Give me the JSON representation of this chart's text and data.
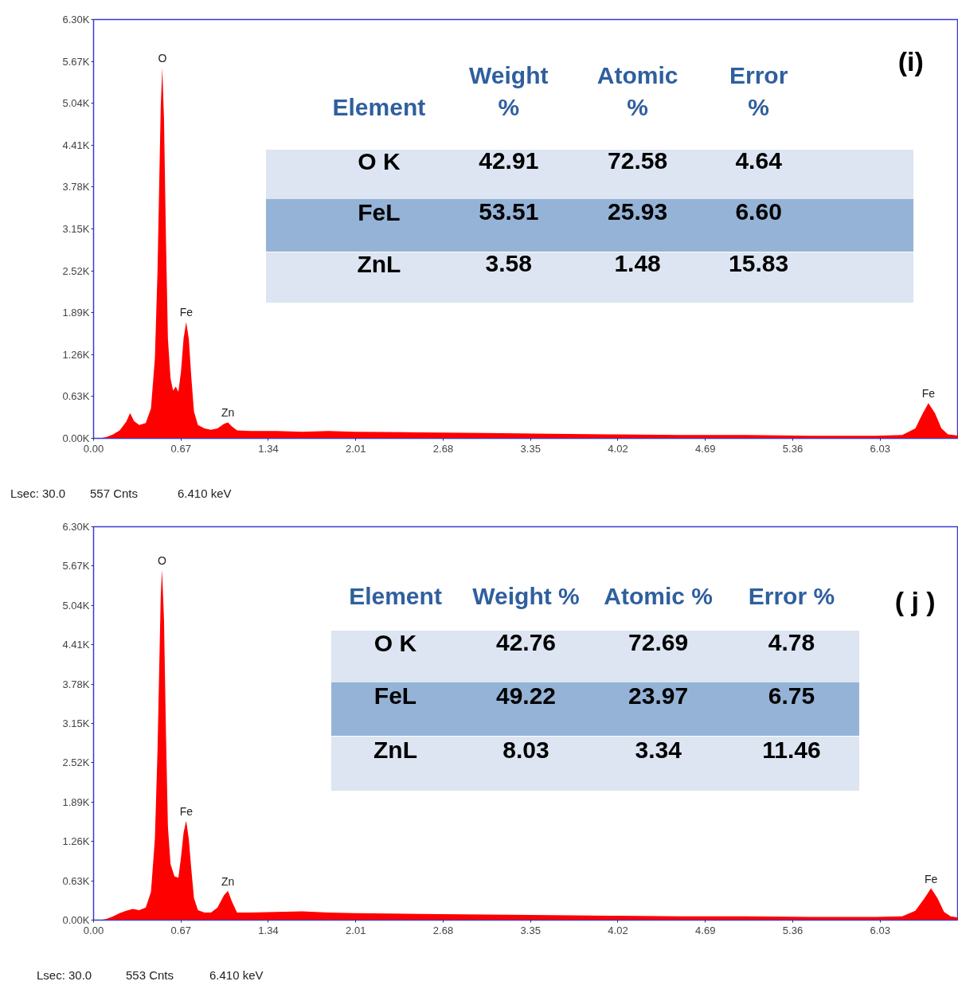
{
  "chart_data": [
    {
      "type": "area",
      "title": "(i)",
      "x": [
        0.05,
        0.1,
        0.15,
        0.2,
        0.25,
        0.28,
        0.31,
        0.35,
        0.4,
        0.44,
        0.47,
        0.49,
        0.505,
        0.515,
        0.527,
        0.54,
        0.555,
        0.57,
        0.59,
        0.61,
        0.63,
        0.65,
        0.67,
        0.69,
        0.71,
        0.73,
        0.75,
        0.77,
        0.8,
        0.85,
        0.9,
        0.95,
        1.0,
        1.03,
        1.06,
        1.1,
        1.2,
        1.4,
        1.6,
        1.8,
        2.0,
        2.5,
        3.0,
        3.5,
        4.0,
        4.5,
        5.0,
        5.5,
        6.0,
        6.2,
        6.3,
        6.35,
        6.4,
        6.45,
        6.5,
        6.55,
        6.63
      ],
      "series": [
        {
          "color": "#ff0000",
          "values": [
            0,
            20,
            60,
            120,
            250,
            380,
            260,
            200,
            230,
            450,
            1200,
            2500,
            4000,
            5000,
            5570,
            4800,
            3000,
            1500,
            900,
            720,
            780,
            700,
            1000,
            1500,
            1750,
            1500,
            900,
            400,
            200,
            150,
            130,
            150,
            220,
            240,
            180,
            120,
            110,
            110,
            100,
            110,
            100,
            90,
            80,
            70,
            60,
            50,
            50,
            40,
            40,
            50,
            150,
            350,
            530,
            380,
            150,
            60,
            40
          ]
        }
      ],
      "xlim": [
        0,
        6.63
      ],
      "ylim": [
        0,
        6300
      ],
      "xticks": [
        {
          "value": 0,
          "label": "0.00"
        },
        0.67,
        1.34,
        2.01,
        2.68,
        3.35,
        4.02,
        4.69,
        5.36,
        6.03
      ],
      "yticks": [
        {
          "value": 0,
          "label": "0.00K"
        },
        {
          "value": 630,
          "label": "0.63K"
        },
        {
          "value": 1260,
          "label": "1.26K"
        },
        {
          "value": 1890,
          "label": "1.89K"
        },
        {
          "value": 2520,
          "label": "2.52K"
        },
        {
          "value": 3150,
          "label": "3.15K"
        },
        {
          "value": 3780,
          "label": "3.78K"
        },
        {
          "value": 4410,
          "label": "4.41K"
        },
        {
          "value": 5040,
          "label": "5.04K"
        },
        {
          "value": 5670,
          "label": "5.67K"
        },
        {
          "value": 6300,
          "label": "6.30K"
        }
      ],
      "annotations": [
        {
          "text": "O",
          "x": 0.527,
          "y": 5570
        },
        {
          "text": "Fe",
          "x": 0.71,
          "y": 1750
        },
        {
          "text": "Zn",
          "x": 1.03,
          "y": 240
        },
        {
          "text": "Fe",
          "x": 6.4,
          "y": 530
        },
        "Element",
        "Weight\n%",
        "Atomic\n%",
        "Error\n%",
        "O K",
        "42.91",
        "72.58",
        "4.64",
        "FeL",
        "53.51",
        "25.93",
        "6.60",
        "ZnL",
        "3.58",
        "1.48",
        "15.83",
        "Lsec: 30.0",
        "557 Cnts",
        "6.410 keV"
      ]
    },
    {
      "type": "area",
      "title": "( j )",
      "x": [
        0.05,
        0.1,
        0.15,
        0.2,
        0.25,
        0.3,
        0.35,
        0.4,
        0.44,
        0.47,
        0.49,
        0.505,
        0.515,
        0.525,
        0.54,
        0.555,
        0.57,
        0.59,
        0.62,
        0.65,
        0.67,
        0.69,
        0.71,
        0.73,
        0.75,
        0.77,
        0.8,
        0.85,
        0.9,
        0.95,
        1.0,
        1.03,
        1.06,
        1.1,
        1.2,
        1.4,
        1.6,
        1.8,
        2.0,
        2.5,
        3.0,
        3.5,
        4.0,
        4.5,
        5.0,
        5.5,
        6.0,
        6.2,
        6.3,
        6.37,
        6.42,
        6.47,
        6.52,
        6.57,
        6.63
      ],
      "series": [
        {
          "color": "#ff0000",
          "values": [
            0,
            20,
            60,
            110,
            150,
            180,
            160,
            200,
            450,
            1300,
            2700,
            4200,
            5200,
            5610,
            4800,
            3000,
            1500,
            900,
            700,
            680,
            1000,
            1400,
            1590,
            1300,
            800,
            350,
            160,
            120,
            120,
            200,
            400,
            470,
            300,
            120,
            120,
            130,
            140,
            120,
            110,
            100,
            90,
            80,
            70,
            60,
            60,
            50,
            50,
            60,
            150,
            350,
            510,
            350,
            130,
            60,
            40
          ]
        }
      ],
      "xlim": [
        0,
        6.63
      ],
      "ylim": [
        0,
        6300
      ],
      "xticks": [
        {
          "value": 0,
          "label": "0.00"
        },
        0.67,
        1.34,
        2.01,
        2.68,
        3.35,
        4.02,
        4.69,
        5.36,
        6.03
      ],
      "yticks": [
        {
          "value": 0,
          "label": "0.00K"
        },
        {
          "value": 630,
          "label": "0.63K"
        },
        {
          "value": 1260,
          "label": "1.26K"
        },
        {
          "value": 1890,
          "label": "1.89K"
        },
        {
          "value": 2520,
          "label": "2.52K"
        },
        {
          "value": 3150,
          "label": "3.15K"
        },
        {
          "value": 3780,
          "label": "3.78K"
        },
        {
          "value": 4410,
          "label": "4.41K"
        },
        {
          "value": 5040,
          "label": "5.04K"
        },
        {
          "value": 5670,
          "label": "5.67K"
        },
        {
          "value": 6300,
          "label": "6.30K"
        }
      ],
      "annotations": [
        {
          "text": "O",
          "x": 0.525,
          "y": 5610
        },
        {
          "text": "Fe",
          "x": 0.71,
          "y": 1590
        },
        {
          "text": "Zn",
          "x": 1.03,
          "y": 470
        },
        {
          "text": "Fe",
          "x": 6.42,
          "y": 510
        },
        "Element",
        "Weight %",
        "Atomic %",
        "Error %",
        "O K",
        "42.76",
        "72.69",
        "4.78",
        "FeL",
        "49.22",
        "23.97",
        "6.75",
        "ZnL",
        "8.03",
        "3.34",
        "11.46",
        "Lsec: 30.0",
        "553 Cnts",
        "6.410 keV"
      ]
    }
  ]
}
